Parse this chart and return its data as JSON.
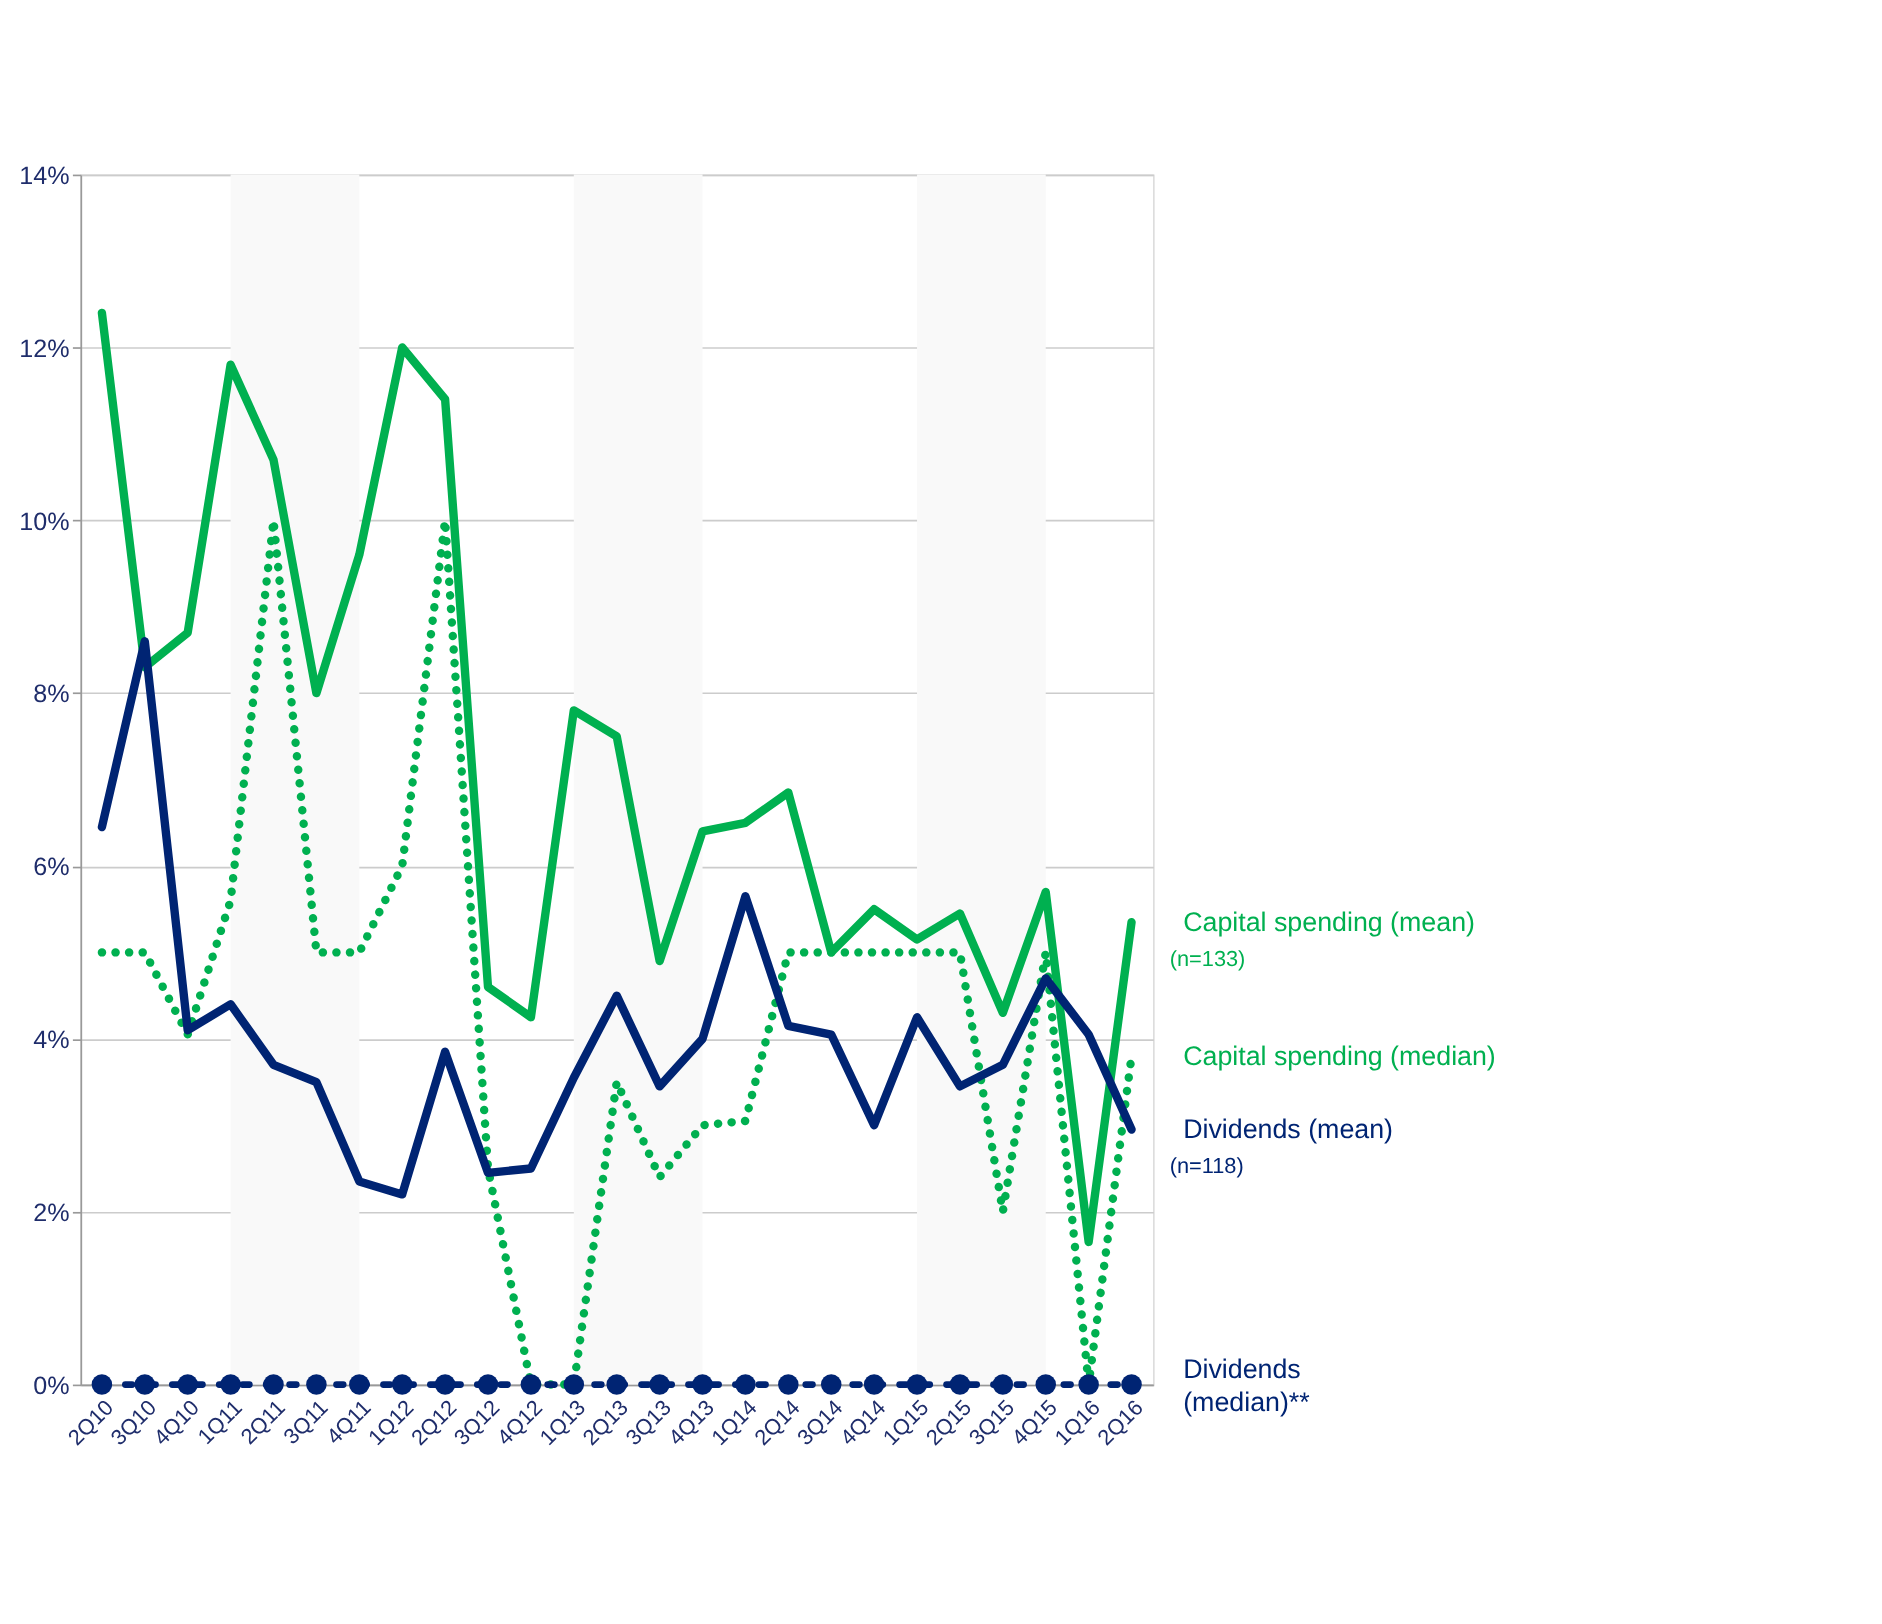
{
  "chart_data": {
    "type": "line",
    "categories": [
      "2Q10",
      "3Q10",
      "4Q10",
      "1Q11",
      "2Q11",
      "3Q11",
      "4Q11",
      "1Q12",
      "2Q12",
      "3Q12",
      "4Q12",
      "1Q13",
      "2Q13",
      "3Q13",
      "4Q13",
      "1Q14",
      "2Q14",
      "3Q14",
      "4Q14",
      "1Q15",
      "2Q15",
      "3Q15",
      "4Q15",
      "1Q16",
      "2Q16"
    ],
    "series": [
      {
        "name": "Capital spending (mean)",
        "color": "#00b050",
        "line_style": "solid",
        "values": [
          12.4,
          8.3,
          8.7,
          11.8,
          10.7,
          8.0,
          9.6,
          12.0,
          11.4,
          4.6,
          4.25,
          7.8,
          7.5,
          4.9,
          6.4,
          6.5,
          6.85,
          5.0,
          5.5,
          5.15,
          5.45,
          4.3,
          5.7,
          1.65,
          5.35
        ]
      },
      {
        "name": "Capital spending (median)",
        "color": "#00b050",
        "line_style": "dotted",
        "values": [
          5.0,
          5.0,
          4.05,
          5.6,
          10.0,
          5.0,
          5.0,
          6.0,
          10.0,
          2.5,
          0,
          0,
          3.5,
          2.4,
          3.0,
          3.05,
          5.0,
          5.0,
          5.0,
          5.0,
          5.0,
          2.0,
          5.0,
          0,
          3.8
        ]
      },
      {
        "name": "Dividends (mean)",
        "color": "#002473",
        "line_style": "solid",
        "values": [
          6.45,
          8.6,
          4.1,
          4.4,
          3.7,
          3.5,
          2.35,
          2.2,
          3.85,
          2.45,
          2.5,
          3.55,
          4.5,
          3.45,
          4.0,
          5.65,
          4.15,
          4.05,
          3.0,
          4.25,
          3.45,
          3.7,
          4.7,
          4.05,
          2.95
        ]
      },
      {
        "name": "Dividends (median)**",
        "color": "#002473",
        "line_style": "dashed",
        "marker": "circle",
        "values": [
          0,
          0,
          0,
          0,
          0,
          0,
          0,
          0,
          0,
          0,
          0,
          0,
          0,
          0,
          0,
          0,
          0,
          0,
          0,
          0,
          0,
          0,
          0,
          0,
          0
        ]
      }
    ],
    "ylim": [
      0,
      14
    ],
    "yticks": [
      {
        "value": 0,
        "label": "0%"
      },
      {
        "value": 2,
        "label": "2%"
      },
      {
        "value": 4,
        "label": "4%"
      },
      {
        "value": 6,
        "label": "6%"
      },
      {
        "value": 8,
        "label": "8%"
      },
      {
        "value": 10,
        "label": "10%"
      },
      {
        "value": 12,
        "label": "12%"
      },
      {
        "value": 14,
        "label": "14%"
      }
    ],
    "grid": "y",
    "legend": "right",
    "bands": [
      {
        "axis": "x",
        "from": "1Q11",
        "to": "4Q11",
        "color": "#f9f9f9"
      },
      {
        "axis": "x",
        "from": "1Q13",
        "to": "4Q13",
        "color": "#f9f9f9"
      },
      {
        "axis": "x",
        "from": "1Q15",
        "to": "4Q15",
        "color": "#f9f9f9"
      }
    ],
    "annotations": [
      "(n=133)",
      "(n=118)"
    ]
  }
}
